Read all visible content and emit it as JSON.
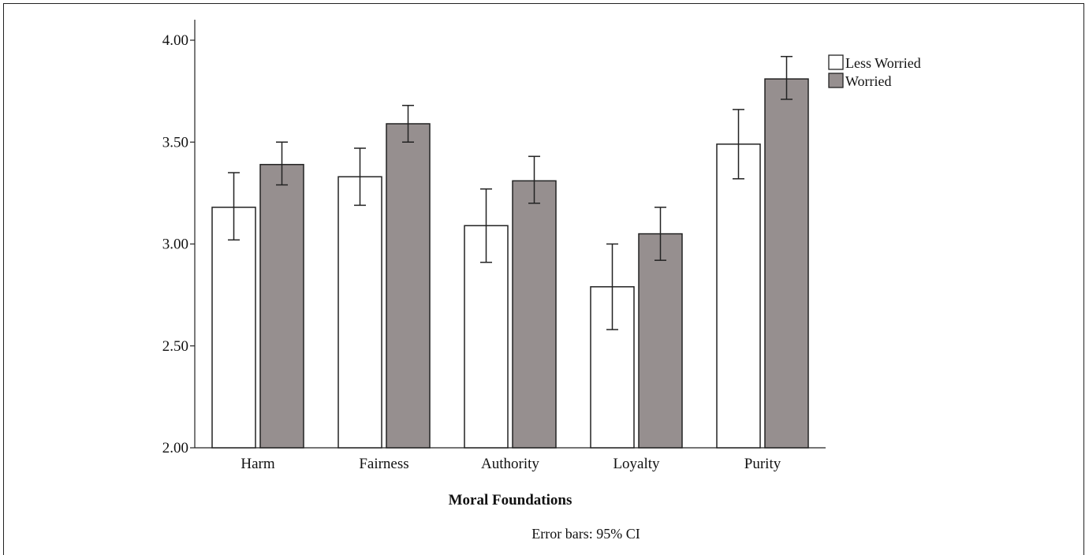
{
  "chart_data": {
    "type": "bar",
    "categories": [
      "Harm",
      "Fairness",
      "Authority",
      "Loyalty",
      "Purity"
    ],
    "series": [
      {
        "name": "Less Worried",
        "color": "#ffffff",
        "values": [
          3.18,
          3.33,
          3.09,
          2.79,
          3.49
        ],
        "ci_low": [
          3.02,
          3.19,
          2.91,
          2.58,
          3.32
        ],
        "ci_high": [
          3.35,
          3.47,
          3.27,
          3.0,
          3.66
        ]
      },
      {
        "name": "Worried",
        "color": "#968f8f",
        "values": [
          3.39,
          3.59,
          3.31,
          3.05,
          3.81
        ],
        "ci_low": [
          3.29,
          3.5,
          3.2,
          2.92,
          3.71
        ],
        "ci_high": [
          3.5,
          3.68,
          3.43,
          3.18,
          3.92
        ]
      }
    ],
    "ylim": [
      2.0,
      4.0
    ],
    "yticks": [
      "2.00",
      "2.50",
      "3.00",
      "3.50",
      "4.00"
    ],
    "ytick_values": [
      2.0,
      2.5,
      3.0,
      3.5,
      4.0
    ],
    "xlabel": "Moral Foundations",
    "ylabel": "",
    "note": "Error bars: 95% CI",
    "legend_position": "top-right",
    "grid": false
  }
}
